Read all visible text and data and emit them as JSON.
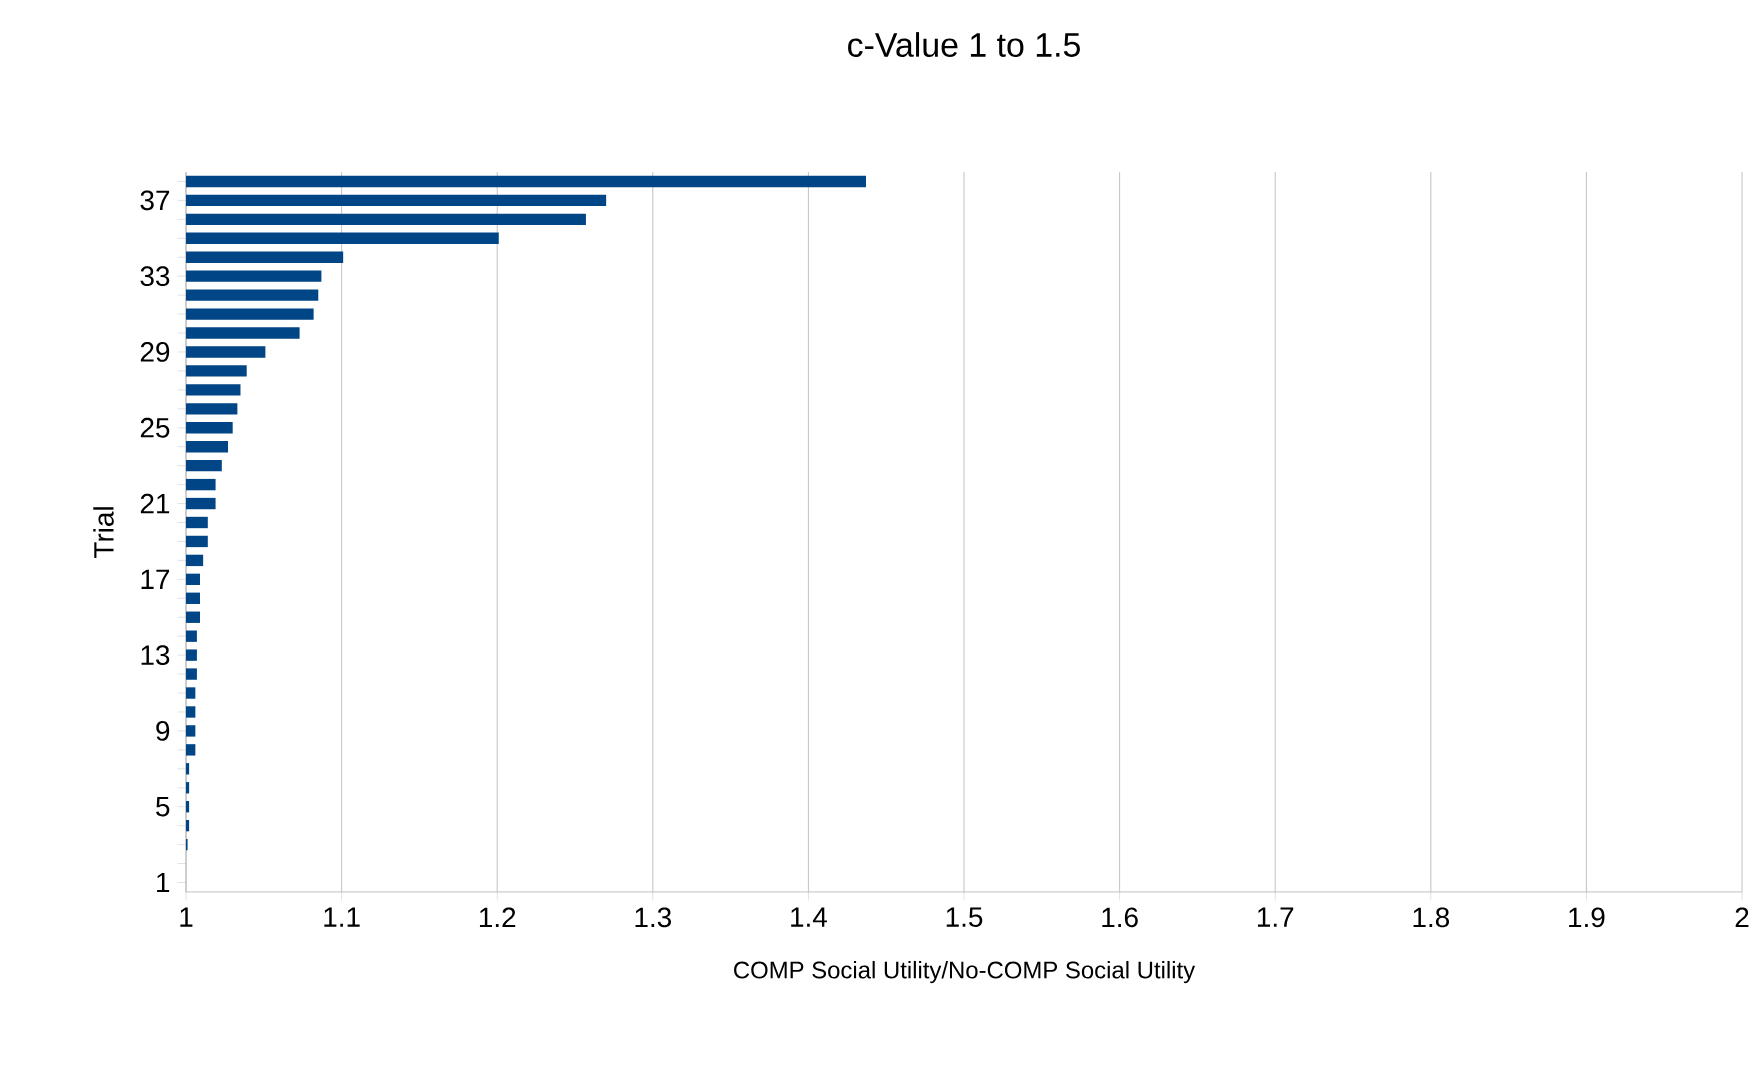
{
  "chart_data": {
    "type": "bar",
    "orientation": "horizontal",
    "title": "c-Value 1 to 1.5",
    "xlabel": "COMP Social Utility/No-COMP Social Utility",
    "ylabel": "Trial",
    "categories": [
      null,
      "37",
      null,
      null,
      null,
      "33",
      null,
      null,
      null,
      "29",
      null,
      null,
      null,
      "25",
      null,
      null,
      null,
      "21",
      null,
      null,
      null,
      "17",
      null,
      null,
      null,
      "13",
      null,
      null,
      null,
      "9",
      null,
      null,
      null,
      "5",
      null,
      null,
      null,
      "1"
    ],
    "values": [
      1.437,
      1.27,
      1.257,
      1.201,
      1.101,
      1.087,
      1.085,
      1.082,
      1.073,
      1.051,
      1.039,
      1.035,
      1.033,
      1.03,
      1.027,
      1.023,
      1.019,
      1.019,
      1.014,
      1.014,
      1.011,
      1.009,
      1.009,
      1.009,
      1.007,
      1.007,
      1.007,
      1.006,
      1.006,
      1.006,
      1.006,
      1.002,
      1.002,
      1.002,
      1.002,
      1.001,
      1,
      1
    ],
    "color": "#004586",
    "xlim": [
      1,
      2
    ],
    "xticks": [
      1,
      1.1,
      1.2,
      1.3,
      1.4,
      1.5,
      1.6,
      1.7,
      1.8,
      1.9,
      2
    ],
    "grid": "x"
  }
}
